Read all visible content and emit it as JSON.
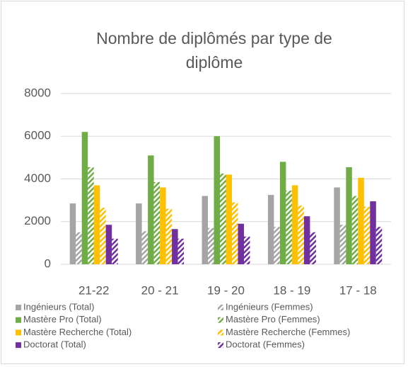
{
  "chart_data": {
    "type": "bar",
    "title": [
      "Nombre de diplômés par type de",
      "diplôme"
    ],
    "categories": [
      "21-22",
      "20 - 21",
      "19 - 20",
      "18 - 19",
      "17 - 18"
    ],
    "series": [
      {
        "name": "Ingénieurs (Total)",
        "color": "#a5a5a5",
        "style": "solid",
        "values": [
          2850,
          2850,
          3200,
          3250,
          3600
        ]
      },
      {
        "name": "Ingénieurs (Femmes)",
        "color": "#a5a5a5",
        "style": "hatched",
        "values": [
          1500,
          1550,
          1700,
          1750,
          1850
        ]
      },
      {
        "name": "Mastère Pro (Total)",
        "color": "#70ad47",
        "style": "solid",
        "values": [
          6200,
          5100,
          6000,
          4800,
          4550
        ]
      },
      {
        "name": "Mastère Pro (Femmes)",
        "color": "#70ad47",
        "style": "hatched",
        "values": [
          4550,
          3850,
          4250,
          3450,
          3200
        ]
      },
      {
        "name": "Mastère Recherche (Total)",
        "color": "#ffc000",
        "style": "solid",
        "values": [
          3700,
          3600,
          4200,
          3700,
          4050
        ]
      },
      {
        "name": "Mastère Recherche (Femmes)",
        "color": "#ffc000",
        "style": "hatched",
        "values": [
          2650,
          2600,
          2900,
          2750,
          2700
        ]
      },
      {
        "name": "Doctorat (Total)",
        "color": "#7030a0",
        "style": "solid",
        "values": [
          1850,
          1650,
          1900,
          2250,
          2950
        ]
      },
      {
        "name": "Doctorat (Femmes)",
        "color": "#7030a0",
        "style": "hatched",
        "values": [
          1200,
          1200,
          1300,
          1500,
          1750
        ]
      }
    ],
    "ylim": [
      0,
      8000
    ],
    "yticks": [
      0,
      2000,
      4000,
      6000,
      8000
    ],
    "grid": true
  }
}
